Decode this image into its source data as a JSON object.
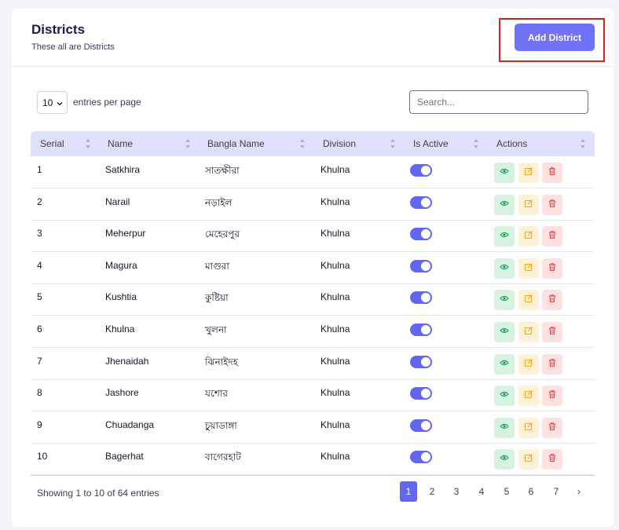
{
  "header": {
    "title": "Districts",
    "subtitle": "These all are Districts",
    "add_button_label": "Add District"
  },
  "controls": {
    "entries_value": "10",
    "entries_label": "entries per page",
    "search_placeholder": "Search..."
  },
  "table": {
    "columns": [
      "Serial",
      "Name",
      "Bangla Name",
      "Division",
      "Is Active",
      "Actions"
    ],
    "rows": [
      {
        "serial": "1",
        "name": "Satkhira",
        "bangla": "সাতক্ষীরা",
        "division": "Khulna",
        "active": true
      },
      {
        "serial": "2",
        "name": "Narail",
        "bangla": "নড়াইল",
        "division": "Khulna",
        "active": true
      },
      {
        "serial": "3",
        "name": "Meherpur",
        "bangla": "মেহেরপুর",
        "division": "Khulna",
        "active": true
      },
      {
        "serial": "4",
        "name": "Magura",
        "bangla": "মাগুরা",
        "division": "Khulna",
        "active": true
      },
      {
        "serial": "5",
        "name": "Kushtia",
        "bangla": "কুষ্টিয়া",
        "division": "Khulna",
        "active": true
      },
      {
        "serial": "6",
        "name": "Khulna",
        "bangla": "খুলনা",
        "division": "Khulna",
        "active": true
      },
      {
        "serial": "7",
        "name": "Jhenaidah",
        "bangla": "ঝিনাইদহ",
        "division": "Khulna",
        "active": true
      },
      {
        "serial": "8",
        "name": "Jashore",
        "bangla": "যশোর",
        "division": "Khulna",
        "active": true
      },
      {
        "serial": "9",
        "name": "Chuadanga",
        "bangla": "চুয়াডাঙ্গা",
        "division": "Khulna",
        "active": true
      },
      {
        "serial": "10",
        "name": "Bagerhat",
        "bangla": "বাগেরহাট",
        "division": "Khulna",
        "active": true
      }
    ]
  },
  "footer": {
    "showing_text": "Showing 1 to 10 of 64 entries",
    "pages": [
      "1",
      "2",
      "3",
      "4",
      "5",
      "6",
      "7"
    ],
    "current_page": "1",
    "next_label": "›"
  },
  "icons": {
    "view": "eye-icon",
    "edit": "edit-icon",
    "delete": "trash-icon",
    "sort": "sort-arrows-icon",
    "select": "chevron-down-icon"
  },
  "colors": {
    "accent": "#6366f1",
    "button": "#7073f5",
    "highlight": "#e11d23",
    "view": "#22a35a",
    "edit": "#f5a524",
    "delete": "#e5484d"
  }
}
